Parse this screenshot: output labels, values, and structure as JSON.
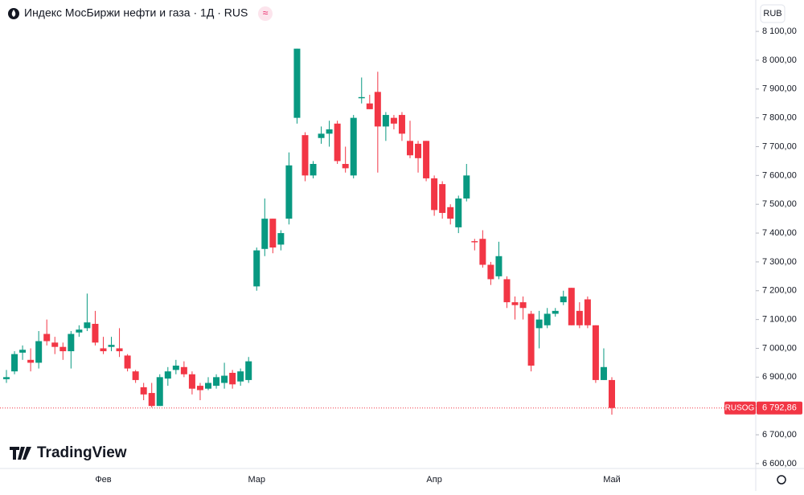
{
  "chart_data": {
    "type": "candlestick",
    "title": "Индекс МосБиржи нефти и газа · 1Д · RUS",
    "currency": "RUB",
    "brand": "TradingView",
    "up_color": "#089981",
    "down_color": "#f23645",
    "categories": [
      null,
      null,
      null,
      null,
      null,
      null,
      null,
      null,
      null,
      null,
      null,
      null,
      "Фев",
      null,
      null,
      null,
      null,
      null,
      null,
      null,
      null,
      null,
      null,
      null,
      null,
      null,
      null,
      null,
      null,
      null,
      null,
      "Мар",
      null,
      null,
      null,
      null,
      null,
      null,
      null,
      null,
      null,
      null,
      null,
      null,
      null,
      null,
      null,
      null,
      null,
      null,
      null,
      null,
      null,
      "Апр",
      null,
      null,
      null,
      null,
      null,
      null,
      null,
      null,
      null,
      null,
      null,
      null,
      null,
      null,
      null,
      null,
      null,
      null,
      null,
      null,
      null,
      "Май"
    ],
    "open": [
      6893,
      6920,
      6985,
      6960,
      6950,
      7050,
      7020,
      7005,
      6990,
      7055,
      7070,
      7085,
      7000,
      7005,
      7000,
      6975,
      6920,
      6865,
      6845,
      6800,
      6895,
      6925,
      6935,
      6910,
      6870,
      6860,
      6870,
      6880,
      6915,
      6885,
      6890,
      7215,
      7345,
      7450,
      7360,
      7450,
      7800,
      7740,
      7600,
      7730,
      7745,
      7780,
      7640,
      7600,
      7868,
      7850,
      7890,
      7770,
      7800,
      7810,
      7720,
      7710,
      7720,
      7590,
      7570,
      7490,
      7420,
      7520,
      7372,
      7380,
      7290,
      7250,
      7240,
      7160,
      7160,
      7120,
      7070,
      7080,
      7120,
      7160,
      7210,
      7130,
      7170,
      7080,
      6890,
      6890
    ],
    "high": [
      6925,
      6990,
      7010,
      7000,
      7060,
      7100,
      7040,
      7020,
      7060,
      7080,
      7190,
      7130,
      7040,
      7040,
      7070,
      6980,
      6925,
      6880,
      6880,
      6910,
      6935,
      6960,
      6955,
      6920,
      6880,
      6900,
      6910,
      6950,
      6925,
      6930,
      6970,
      7350,
      7520,
      7450,
      7410,
      7680,
      8040,
      7750,
      7650,
      7770,
      7790,
      7790,
      7700,
      7810,
      7940,
      7880,
      7960,
      7820,
      7810,
      7820,
      7790,
      7720,
      7720,
      7600,
      7580,
      7500,
      7530,
      7640,
      7380,
      7410,
      7300,
      7370,
      7250,
      7180,
      7180,
      7130,
      7130,
      7140,
      7140,
      7200,
      7210,
      7160,
      7180,
      7080,
      7000,
      6900
    ],
    "low": [
      6880,
      6910,
      6960,
      6920,
      6930,
      7010,
      6980,
      6960,
      6930,
      7040,
      7060,
      7010,
      6980,
      6990,
      6970,
      6920,
      6880,
      6820,
      6795,
      6800,
      6870,
      6910,
      6900,
      6840,
      6820,
      6855,
      6860,
      6860,
      6860,
      6870,
      6880,
      7200,
      7320,
      7330,
      7340,
      7430,
      7780,
      7580,
      7590,
      7710,
      7700,
      7640,
      7610,
      7590,
      7850,
      7830,
      7610,
      7720,
      7760,
      7720,
      7660,
      7610,
      7580,
      7460,
      7450,
      7430,
      7400,
      7510,
      7340,
      7280,
      7220,
      7240,
      7140,
      7100,
      7100,
      6920,
      7000,
      7070,
      7110,
      7150,
      7080,
      7070,
      7070,
      6880,
      6890,
      6770
    ],
    "close": [
      6900,
      6980,
      6995,
      6950,
      7025,
      7025,
      7005,
      6990,
      7050,
      7065,
      7090,
      7020,
      6990,
      7012,
      6990,
      6930,
      6890,
      6840,
      6800,
      6900,
      6920,
      6940,
      6910,
      6860,
      6855,
      6880,
      6900,
      6905,
      6875,
      6920,
      6955,
      7340,
      7450,
      7350,
      7400,
      7635,
      8040,
      7600,
      7640,
      7745,
      7760,
      7650,
      7625,
      7800,
      7872,
      7830,
      7770,
      7810,
      7780,
      7745,
      7670,
      7660,
      7590,
      7480,
      7470,
      7450,
      7520,
      7600,
      7368,
      7290,
      7240,
      7320,
      7160,
      7150,
      7140,
      6940,
      7100,
      7120,
      7130,
      7180,
      7080,
      7080,
      7080,
      6890,
      6935,
      6793
    ],
    "ylim": [
      6583,
      8209
    ],
    "yticks": [
      {
        "value": 6600,
        "label": "6 600,00"
      },
      {
        "value": 6700,
        "label": "6 700,00"
      },
      {
        "value": 6800,
        "label": "6 800,00"
      },
      {
        "value": 6900,
        "label": "6 900,00"
      },
      {
        "value": 7000,
        "label": "7 000,00"
      },
      {
        "value": 7100,
        "label": "7 100,00"
      },
      {
        "value": 7200,
        "label": "7 200,00"
      },
      {
        "value": 7300,
        "label": "7 300,00"
      },
      {
        "value": 7400,
        "label": "7 400,00"
      },
      {
        "value": 7500,
        "label": "7 500,00"
      },
      {
        "value": 7600,
        "label": "7 600,00"
      },
      {
        "value": 7700,
        "label": "7 700,00"
      },
      {
        "value": 7800,
        "label": "7 800,00"
      },
      {
        "value": 7900,
        "label": "7 900,00"
      },
      {
        "value": 8000,
        "label": "8 000,00"
      },
      {
        "value": 8100,
        "label": "8 100,00"
      }
    ],
    "last_price": {
      "symbol": "RUSOG",
      "value": 6792.86,
      "label": "6 792,86"
    }
  }
}
